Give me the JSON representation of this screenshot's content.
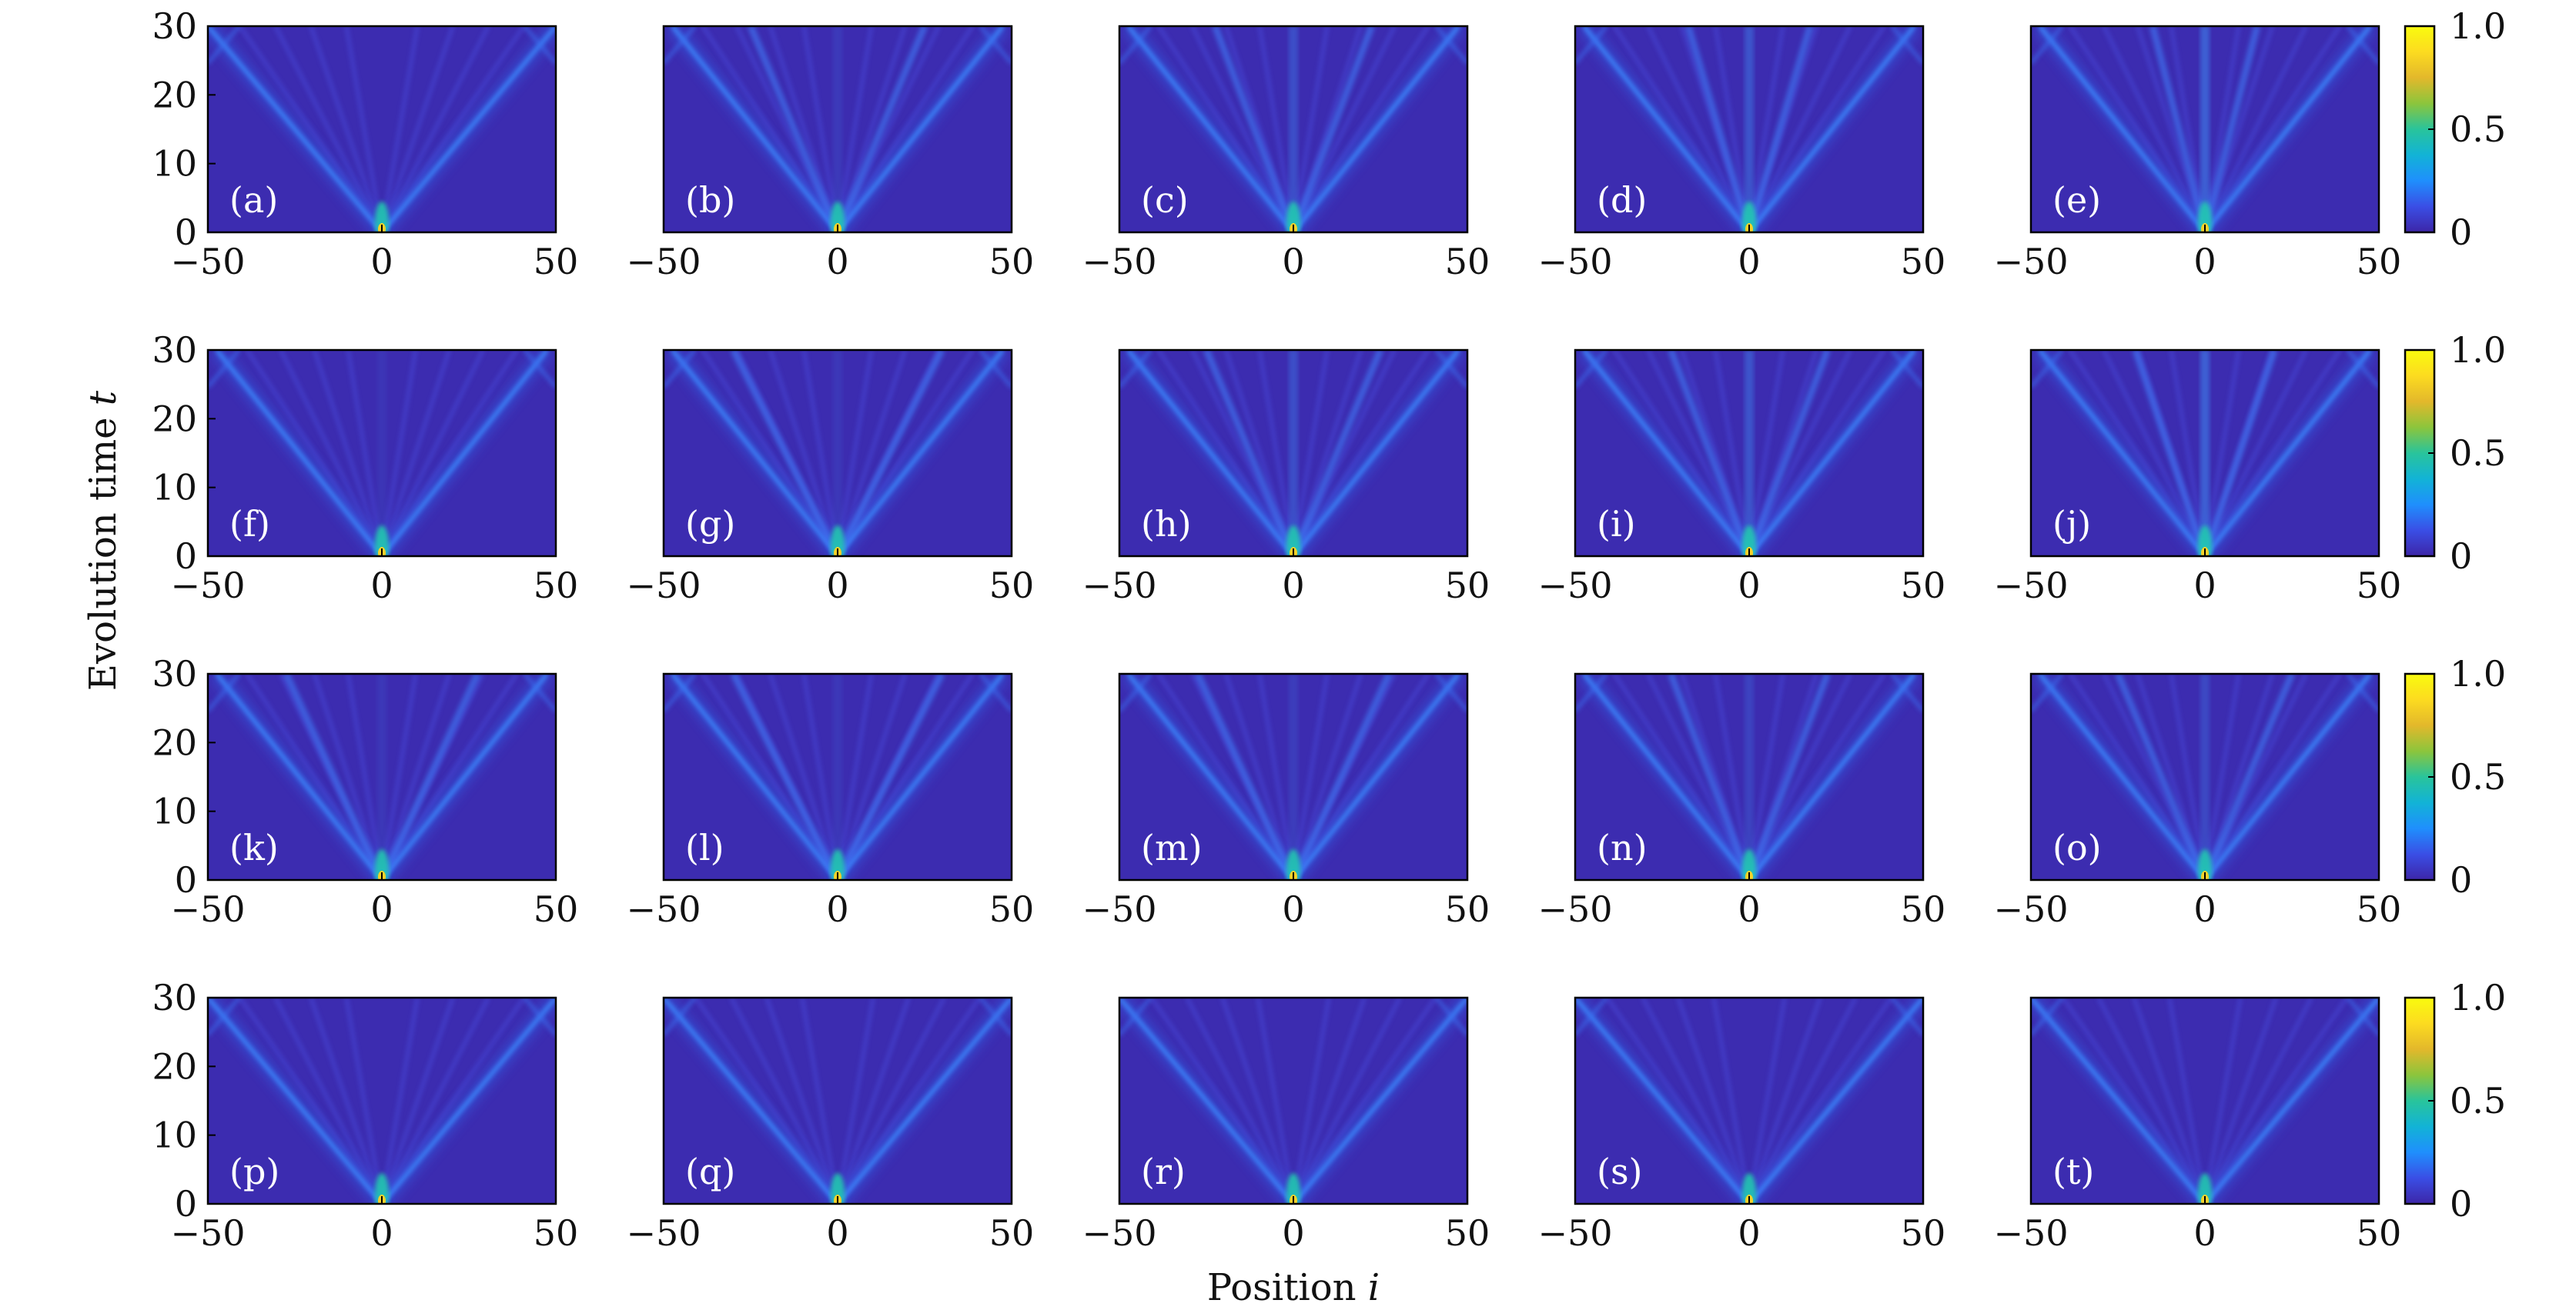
{
  "chart_data": {
    "type": "heatmap",
    "layout": {
      "rows": 4,
      "cols": 5
    },
    "xlabel_text": "Position ",
    "xlabel_var": "i",
    "ylabel_text": "Evolution time ",
    "ylabel_var": "t",
    "x_ticks": [
      "−50",
      "0",
      "50"
    ],
    "x_tick_values": [
      -50,
      0,
      50
    ],
    "y_ticks": [
      "0",
      "10",
      "20",
      "30"
    ],
    "y_tick_values": [
      0,
      10,
      20,
      30
    ],
    "xlim": [
      -50,
      50
    ],
    "ylim": [
      0,
      30
    ],
    "colorbar": {
      "ticks": [
        "0",
        "0.5",
        "1.0"
      ],
      "values": [
        0,
        0.5,
        1.0
      ],
      "range": [
        0,
        1.0
      ],
      "colormap": [
        "#3d26a8",
        "#3a4ee5",
        "#1f8ffd",
        "#12b3d6",
        "#29c49b",
        "#8cc53c",
        "#e3b82b",
        "#fcdb20",
        "#f9fb0e"
      ]
    },
    "colors": {
      "background": "#3c2cb0"
    },
    "panels": [
      {
        "label": "(a)",
        "cone_speed": 1.0,
        "inner_rays": [],
        "center_beam": 0.05
      },
      {
        "label": "(b)",
        "cone_speed": 0.95,
        "inner_rays": [
          0.5
        ],
        "center_beam": 0.12
      },
      {
        "label": "(c)",
        "cone_speed": 0.95,
        "inner_rays": [
          0.45
        ],
        "center_beam": 0.3
      },
      {
        "label": "(d)",
        "cone_speed": 0.95,
        "inner_rays": [
          0.35
        ],
        "center_beam": 0.35
      },
      {
        "label": "(e)",
        "cone_speed": 0.95,
        "inner_rays": [
          0.3
        ],
        "center_beam": 0.45
      },
      {
        "label": "(f)",
        "cone_speed": 0.95,
        "inner_rays": [],
        "center_beam": 0.08
      },
      {
        "label": "(g)",
        "cone_speed": 0.95,
        "inner_rays": [
          0.6
        ],
        "center_beam": 0.1
      },
      {
        "label": "(h)",
        "cone_speed": 0.95,
        "inner_rays": [
          0.5
        ],
        "center_beam": 0.3
      },
      {
        "label": "(i)",
        "cone_speed": 0.95,
        "inner_rays": [
          0.45
        ],
        "center_beam": 0.35
      },
      {
        "label": "(j)",
        "cone_speed": 0.95,
        "inner_rays": [
          0.4
        ],
        "center_beam": 0.45
      },
      {
        "label": "(k)",
        "cone_speed": 0.95,
        "inner_rays": [
          0.55
        ],
        "center_beam": 0.1
      },
      {
        "label": "(l)",
        "cone_speed": 0.95,
        "inner_rays": [
          0.6
        ],
        "center_beam": 0.1
      },
      {
        "label": "(m)",
        "cone_speed": 0.95,
        "inner_rays": [
          0.55
        ],
        "center_beam": 0.15
      },
      {
        "label": "(n)",
        "cone_speed": 0.95,
        "inner_rays": [
          0.45
        ],
        "center_beam": 0.2
      },
      {
        "label": "(o)",
        "cone_speed": 0.95,
        "inner_rays": [
          0.5
        ],
        "center_beam": 0.25
      },
      {
        "label": "(p)",
        "cone_speed": 1.0,
        "inner_rays": [],
        "center_beam": 0.05
      },
      {
        "label": "(q)",
        "cone_speed": 1.0,
        "inner_rays": [],
        "center_beam": 0.05
      },
      {
        "label": "(r)",
        "cone_speed": 1.0,
        "inner_rays": [],
        "center_beam": 0.05
      },
      {
        "label": "(s)",
        "cone_speed": 1.0,
        "inner_rays": [],
        "center_beam": 0.05
      },
      {
        "label": "(t)",
        "cone_speed": 1.0,
        "inner_rays": [],
        "center_beam": 0.05
      }
    ]
  }
}
